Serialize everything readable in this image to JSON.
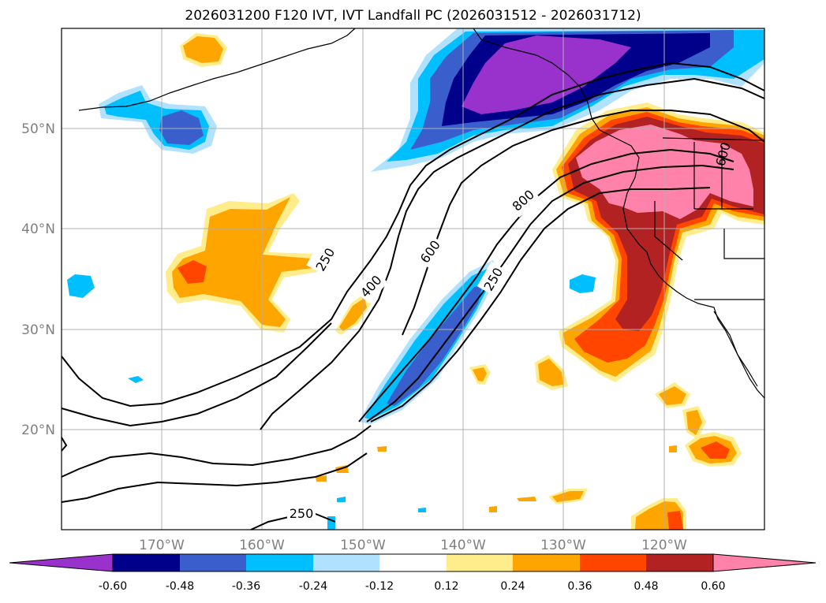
{
  "title": "2026031200 F120 IVT, IVT Landfall PC (2026031512 - 2026031712)",
  "axes": {
    "longitude_ticks": [
      "170°W",
      "160°W",
      "150°W",
      "140°W",
      "130°W",
      "120°W"
    ],
    "latitude_ticks": [
      "20°N",
      "30°N",
      "40°N",
      "50°N"
    ],
    "lon_range": [
      -180,
      -110
    ],
    "lat_range": [
      10,
      60
    ],
    "grid": true
  },
  "colorbar": {
    "ticks": [
      "-0.60",
      "-0.48",
      "-0.36",
      "-0.24",
      "-0.12",
      "0.12",
      "0.24",
      "0.36",
      "0.48",
      "0.60"
    ],
    "colors": [
      "#9932CC",
      "#00008B",
      "#3A5FCD",
      "#00BFFF",
      "#B0E2FF",
      "#FFFFFF",
      "#FFEC8B",
      "#FFA500",
      "#FF4500",
      "#B22222",
      "#FF82AB"
    ],
    "extend": "both"
  },
  "contour_labels": [
    "250",
    "400",
    "600",
    "800",
    "250",
    "250",
    "600"
  ],
  "colors": {
    "contour": "#000000",
    "coastline": "#000000",
    "grid": "#b0b0b0",
    "tick_text": "#808080"
  }
}
